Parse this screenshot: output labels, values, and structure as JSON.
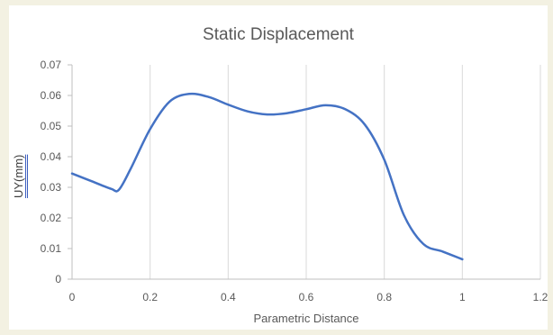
{
  "chart_data": {
    "type": "line",
    "title": "Static Displacement",
    "xlabel": "Parametric Distance",
    "ylabel": "UY(mm)",
    "xlim": [
      0,
      1.2
    ],
    "ylim": [
      0,
      0.07
    ],
    "x_ticks": [
      0,
      0.2,
      0.4,
      0.6,
      0.8,
      1,
      1.2
    ],
    "y_ticks": [
      0,
      0.01,
      0.02,
      0.03,
      0.04,
      0.05,
      0.06,
      0.07
    ],
    "grid": "vertical",
    "color": "#4472c4",
    "series": [
      {
        "x": [
          0,
          0.05,
          0.1,
          0.12,
          0.15,
          0.2,
          0.25,
          0.3,
          0.35,
          0.4,
          0.45,
          0.5,
          0.55,
          0.6,
          0.65,
          0.7,
          0.75,
          0.8,
          0.85,
          0.9,
          0.95,
          1.0
        ],
        "y": [
          0.0345,
          0.032,
          0.0295,
          0.0292,
          0.036,
          0.049,
          0.058,
          0.0605,
          0.0595,
          0.057,
          0.0548,
          0.0538,
          0.0542,
          0.0555,
          0.0568,
          0.0555,
          0.0505,
          0.039,
          0.021,
          0.0115,
          0.009,
          0.0065
        ]
      }
    ]
  }
}
